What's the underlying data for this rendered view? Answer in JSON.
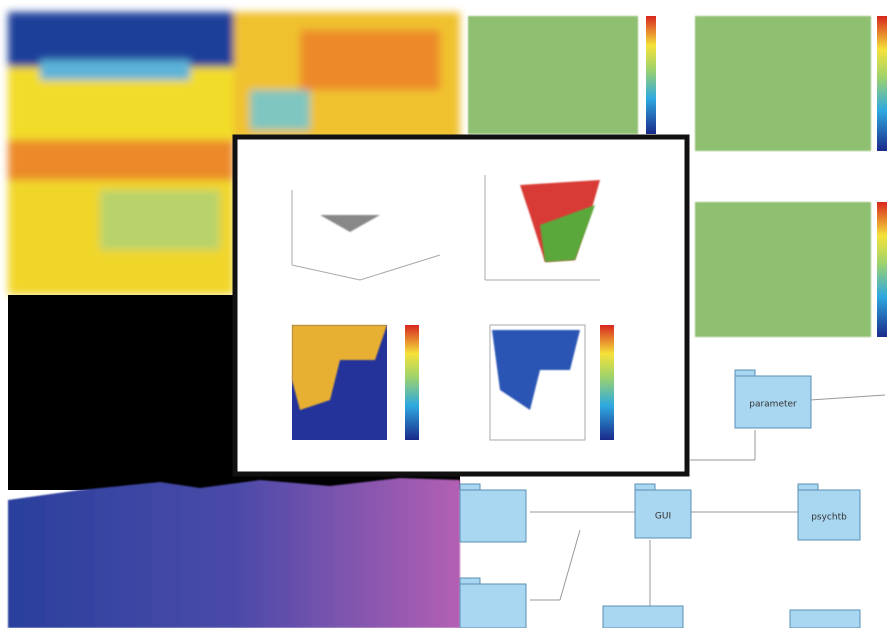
{
  "diagram": {
    "nodes": [
      {
        "label": "parameter"
      },
      {
        "label": "GUI"
      },
      {
        "label": "psychtb"
      }
    ]
  }
}
